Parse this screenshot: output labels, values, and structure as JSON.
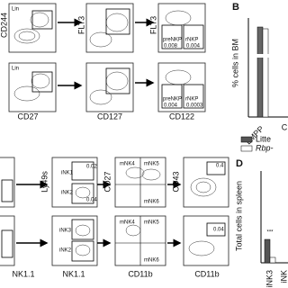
{
  "panel_a": {
    "rows": [
      {
        "gate_label": "Lin",
        "ylabel1": "CD244",
        "ylabel2": "FLT3",
        "ylabel3": "FLT3",
        "gates": [
          "preNKP",
          "rNKP"
        ],
        "values": [
          "0.008",
          "0.004"
        ]
      },
      {
        "gate_label": "Lin",
        "xlabel1": "CD27",
        "xlabel2": "CD127",
        "xlabel3": "CD122",
        "gates": [
          "preNKP",
          "rNKP"
        ],
        "values": [
          "0.004",
          "0.0003"
        ]
      }
    ]
  },
  "panel_b": {
    "label": "B",
    "ylabel": "% cells in BM",
    "categories": [
      "LMPP",
      "C"
    ]
  },
  "legend": [
    "Litte",
    "Rbp-"
  ],
  "panel_c": {
    "ylabel1": "Ly49s",
    "ylabel2": "CD27",
    "ylabel3": "CD43",
    "xlabel1": "NK1.1",
    "xlabel2": "NK1.1",
    "xlabel3": "CD11b",
    "xlabel4": "CD11b",
    "ink": [
      "iNK1",
      "iNK2",
      "iNK3",
      "iNK2"
    ],
    "ink_values": [
      "0.02",
      "0.04"
    ],
    "mnk_top": [
      "mNK4",
      "mNK5",
      "mNK6"
    ],
    "mnk_bottom": [
      "mNK4",
      "mNK5",
      "mNK6"
    ],
    "cd43_values": [
      "0.4",
      "0.04"
    ]
  },
  "panel_d": {
    "label": "D",
    "ylabel": "Total cells in spleen",
    "significance": "***",
    "categories": [
      "iNK3",
      "iNK"
    ]
  }
}
